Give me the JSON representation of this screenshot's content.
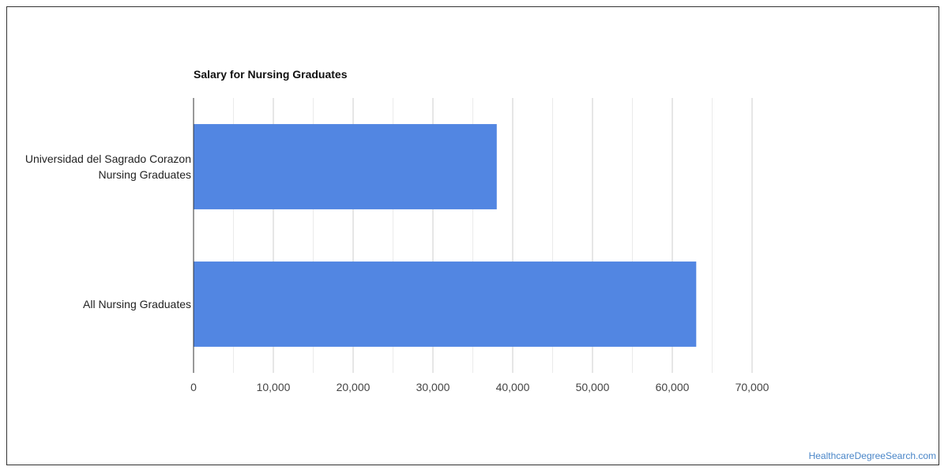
{
  "chart_data": {
    "type": "bar",
    "orientation": "horizontal",
    "title": "Salary for Nursing Graduates",
    "categories": [
      [
        "Universidad del Sagrado Corazon",
        "Nursing Graduates"
      ],
      [
        "All Nursing Graduates"
      ]
    ],
    "values": [
      38000,
      63000
    ],
    "xlim": [
      0,
      70000
    ],
    "xticks": [
      "0",
      "10,000",
      "20,000",
      "30,000",
      "40,000",
      "50,000",
      "60,000",
      "70,000"
    ],
    "grid": true,
    "bar_color": "#5286e2"
  },
  "footer": {
    "source": "HealthcareDegreeSearch.com"
  }
}
